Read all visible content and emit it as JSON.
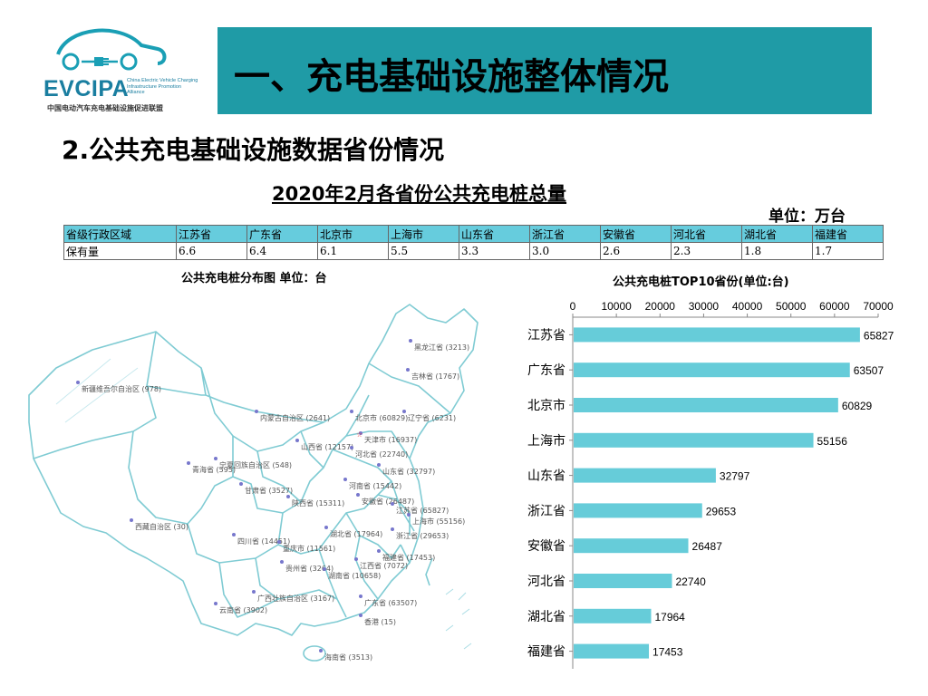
{
  "logo": {
    "name": "EVCIPA",
    "english": "China Electric Vehicle Charging Infrastructure Promotion Alliance",
    "chinese": "中国电动汽车充电基础设施促进联盟"
  },
  "header": {
    "title": "一、充电基础设施整体情况"
  },
  "subtitle": "2.公共充电基础设施数据省份情况",
  "table": {
    "title": "2020年2月各省份公共充电桩总量",
    "unit": "单位：万台",
    "row_header_1": "省级行政区域",
    "row_header_2": "保有量",
    "provinces": [
      "江苏省",
      "广东省",
      "北京市",
      "上海市",
      "山东省",
      "浙江省",
      "安徽省",
      "河北省",
      "湖北省",
      "福建省"
    ],
    "values": [
      "6.6",
      "6.4",
      "6.1",
      "5.5",
      "3.3",
      "3.0",
      "2.6",
      "2.3",
      "1.8",
      "1.7"
    ]
  },
  "map": {
    "title": "公共充电桩分布图   单位：台",
    "labels": [
      {
        "name": "黑龙江省 (3213)"
      },
      {
        "name": "吉林省 (1767)"
      },
      {
        "name": "新疆维吾尔自治区 (978)"
      },
      {
        "name": "内蒙古自治区 (2641)"
      },
      {
        "name": "北京市 (60829)"
      },
      {
        "name": "辽宁省 (6231)"
      },
      {
        "name": "天津市 (16937)"
      },
      {
        "name": "山西省 (12157)"
      },
      {
        "name": "河北省 (22740)"
      },
      {
        "name": "青海省 (595)"
      },
      {
        "name": "宁夏回族自治区 (548)"
      },
      {
        "name": "山东省 (32797)"
      },
      {
        "name": "甘肃省 (3527)"
      },
      {
        "name": "河南省 (15442)"
      },
      {
        "name": "陕西省 (15311)"
      },
      {
        "name": "安徽省 (26487)"
      },
      {
        "name": "江苏省 (65827)"
      },
      {
        "name": "上海市 (55156)"
      },
      {
        "name": "西藏自治区 (30)"
      },
      {
        "name": "湖北省 (17964)"
      },
      {
        "name": "浙江省 (29653)"
      },
      {
        "name": "四川省 (14451)"
      },
      {
        "name": "重庆市 (11561)"
      },
      {
        "name": "福建省 (17453)"
      },
      {
        "name": "贵州省 (3264)"
      },
      {
        "name": "湖南省 (10658)"
      },
      {
        "name": "江西省 (7072)"
      },
      {
        "name": "广西壮族自治区 (3167)"
      },
      {
        "name": "广东省 (63507)"
      },
      {
        "name": "云南省 (3902)"
      },
      {
        "name": "香港 (15)"
      },
      {
        "name": "海南省 (3513)"
      }
    ]
  },
  "chart_data": {
    "type": "bar",
    "orientation": "horizontal",
    "title": "公共充电桩TOP10省份(单位:台)",
    "categories": [
      "江苏省",
      "广东省",
      "北京市",
      "上海市",
      "山东省",
      "浙江省",
      "安徽省",
      "河北省",
      "湖北省",
      "福建省"
    ],
    "values": [
      65827,
      63507,
      60829,
      55156,
      32797,
      29653,
      26487,
      22740,
      17964,
      17453
    ],
    "xlim": [
      0,
      70000
    ],
    "xticks": [
      "0",
      "10000",
      "20000",
      "30000",
      "40000",
      "50000",
      "60000",
      "70000"
    ],
    "xaxis_position": "top",
    "grid": false,
    "legend": "none",
    "bar_color": "#66ccd9"
  },
  "colors": {
    "banner": "#1f9ba6",
    "table_header": "#66ccdd",
    "map_border": "#7fcbd3",
    "map_dot": "#7777cc"
  }
}
